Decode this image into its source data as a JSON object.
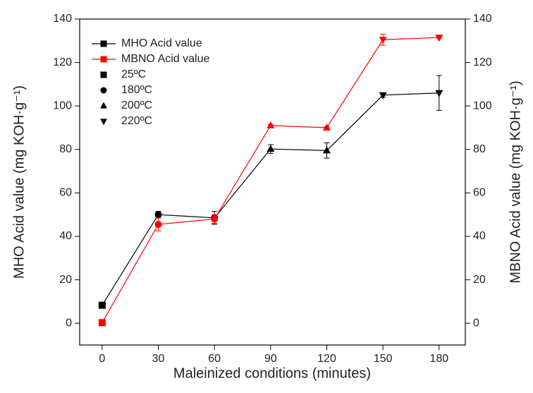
{
  "chart_data": {
    "type": "line",
    "xlabel": "Maleinized conditions (minutes)",
    "ylabel": "MHO Acid value (mg KOH·g⁻¹)",
    "y2label": "MBNO Acid value (mg KOH·g⁻¹)",
    "x": [
      0,
      30,
      60,
      90,
      120,
      150,
      180
    ],
    "markers": [
      "square",
      "circle",
      "circle",
      "triangle-up",
      "triangle-up",
      "triangle-down",
      "triangle-down"
    ],
    "series": [
      {
        "name": "MHO Acid value",
        "color": "#000000",
        "values": [
          8.3,
          50,
          48.5,
          80.2,
          79.5,
          105,
          106
        ],
        "errors": [
          0.5,
          1.5,
          3,
          2,
          3.5,
          1,
          8
        ]
      },
      {
        "name": "MBNO Acid value",
        "color": "#ff0000",
        "axis": "y2",
        "values": [
          0.3,
          45.5,
          48,
          91,
          90,
          130.5,
          131.5
        ],
        "errors": [
          0,
          3,
          2,
          0.5,
          0.5,
          2.5,
          0.5
        ]
      }
    ],
    "marker_legend": [
      {
        "label": "25ºC",
        "marker": "square"
      },
      {
        "label": "180ºC",
        "marker": "circle"
      },
      {
        "label": "200ºC",
        "marker": "triangle-up"
      },
      {
        "label": "220ºC",
        "marker": "triangle-down"
      }
    ],
    "legend": "upper-left",
    "xlim": [
      -12,
      194
    ],
    "xticks": [
      0,
      30,
      60,
      90,
      120,
      150,
      180
    ],
    "ylim": [
      -10,
      140
    ],
    "yticks": [
      0,
      20,
      40,
      60,
      80,
      100,
      120,
      140
    ],
    "y2lim": [
      -10,
      140
    ],
    "y2ticks": [
      0,
      20,
      40,
      60,
      80,
      100,
      120,
      140
    ]
  }
}
